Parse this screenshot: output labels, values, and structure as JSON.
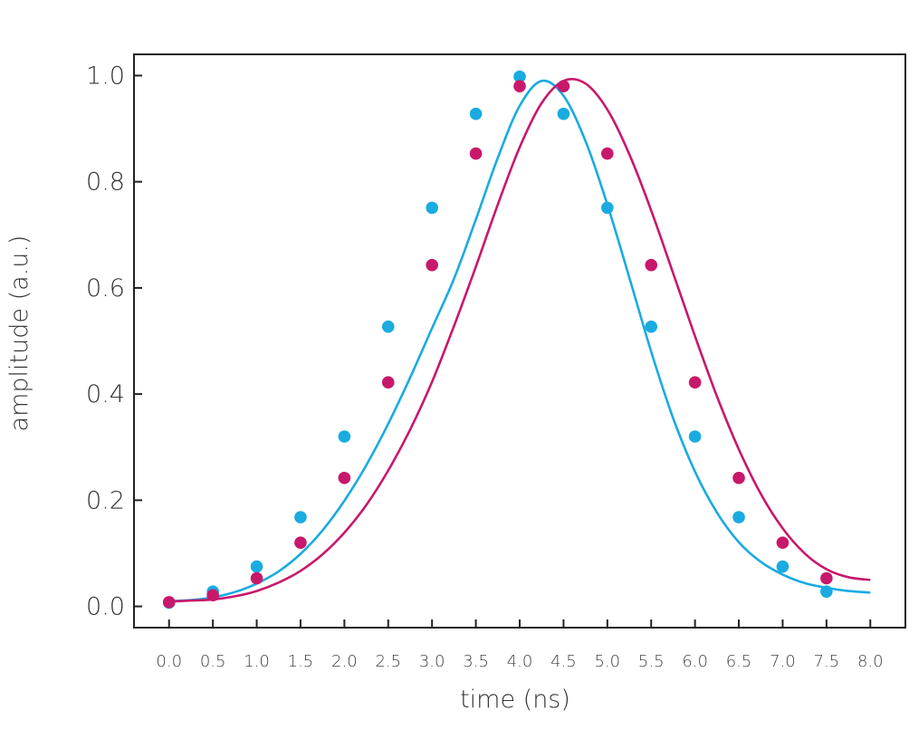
{
  "chart_data": {
    "type": "scatter",
    "xlabel": "time (ns)",
    "ylabel": "amplitude (a.u.)",
    "xlim": [
      -0.4,
      8.4
    ],
    "ylim": [
      -0.04,
      1.04
    ],
    "x_ticks": [
      "0.0",
      "0.5",
      "1.0",
      "1.5",
      "2.0",
      "2.5",
      "3.0",
      "3.5",
      "4.0",
      "4.5",
      "5.0",
      "5.5",
      "6.0",
      "6.5",
      "7.0",
      "7.5",
      "8.0"
    ],
    "y_ticks": [
      "0.0",
      "0.2",
      "0.4",
      "0.6",
      "0.8",
      "1.0"
    ],
    "grid": false,
    "legend": "none",
    "series": [
      {
        "color": "#1aabe0",
        "points_x": [
          0.0,
          0.5,
          1.0,
          1.5,
          2.0,
          2.5,
          3.0,
          3.5,
          4.0,
          4.5,
          5.0,
          5.5,
          6.0,
          6.5,
          7.0,
          7.5
        ],
        "points_y": [
          0.007,
          0.028,
          0.075,
          0.168,
          0.32,
          0.527,
          0.751,
          0.928,
          0.998,
          0.928,
          0.751,
          0.527,
          0.32,
          0.168,
          0.075,
          0.028
        ],
        "fit_x": [
          0.0,
          0.25,
          0.5,
          0.75,
          1.0,
          1.25,
          1.5,
          1.75,
          2.0,
          2.25,
          2.5,
          2.75,
          3.0,
          3.25,
          3.5,
          3.75,
          4.0,
          4.25,
          4.5,
          4.75,
          5.0,
          5.25,
          5.5,
          5.75,
          6.0,
          6.25,
          6.5,
          6.75,
          7.0,
          7.25,
          7.5,
          7.75,
          8.0
        ],
        "fit_y": [
          0.01,
          0.012,
          0.017,
          0.027,
          0.043,
          0.066,
          0.099,
          0.143,
          0.199,
          0.266,
          0.344,
          0.431,
          0.524,
          0.617,
          0.729,
          0.845,
          0.943,
          0.99,
          0.962,
          0.877,
          0.757,
          0.62,
          0.48,
          0.355,
          0.254,
          0.177,
          0.121,
          0.084,
          0.06,
          0.044,
          0.035,
          0.029,
          0.026
        ]
      },
      {
        "color": "#c8186b",
        "points_x": [
          0.0,
          0.5,
          1.0,
          1.5,
          2.0,
          2.5,
          3.0,
          3.5,
          4.0,
          4.5,
          5.0,
          5.5,
          6.0,
          6.5,
          7.0,
          7.5
        ],
        "points_y": [
          0.008,
          0.021,
          0.053,
          0.12,
          0.242,
          0.422,
          0.643,
          0.853,
          0.98,
          0.98,
          0.853,
          0.643,
          0.422,
          0.242,
          0.12,
          0.053
        ],
        "fit_x": [
          0.0,
          0.25,
          0.5,
          0.75,
          1.0,
          1.25,
          1.5,
          1.75,
          2.0,
          2.25,
          2.5,
          2.75,
          3.0,
          3.25,
          3.5,
          3.75,
          4.0,
          4.25,
          4.5,
          4.75,
          5.0,
          5.25,
          5.5,
          5.75,
          6.0,
          6.25,
          6.5,
          6.75,
          7.0,
          7.25,
          7.5,
          7.75,
          8.0
        ],
        "fit_y": [
          0.009,
          0.011,
          0.013,
          0.019,
          0.029,
          0.045,
          0.067,
          0.098,
          0.139,
          0.191,
          0.256,
          0.333,
          0.423,
          0.528,
          0.64,
          0.757,
          0.865,
          0.948,
          0.99,
          0.985,
          0.936,
          0.852,
          0.746,
          0.628,
          0.509,
          0.396,
          0.296,
          0.212,
          0.147,
          0.1,
          0.07,
          0.055,
          0.05
        ]
      }
    ]
  }
}
